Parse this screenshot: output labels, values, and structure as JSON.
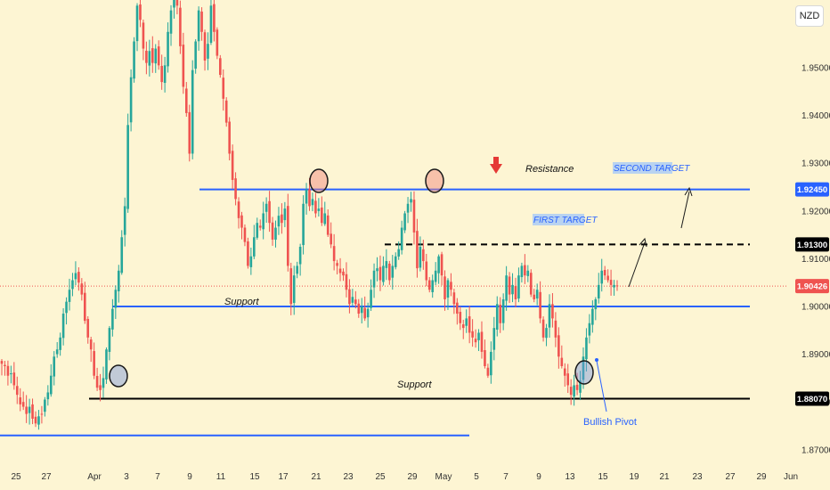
{
  "currency_badge": "NZD",
  "colors": {
    "background": "#fdf5d3",
    "bull": "#26a69a",
    "bear": "#ef5350",
    "resistance_line": "#2962ff",
    "support_black": "#000000",
    "current_price": "#ef5350"
  },
  "chart_data": {
    "type": "candlestick",
    "title": "",
    "instrument_currency": "NZD",
    "x_tick_labels": [
      "25",
      "27",
      "Apr",
      "3",
      "7",
      "9",
      "11",
      "15",
      "17",
      "21",
      "23",
      "25",
      "29",
      "May",
      "5",
      "7",
      "9",
      "13",
      "15",
      "19",
      "21",
      "23",
      "27",
      "29",
      "Jun"
    ],
    "ylim": [
      1.865,
      1.965
    ],
    "y_ticks": [
      1.87,
      1.88,
      1.89,
      1.9,
      1.91,
      1.92,
      1.93,
      1.94,
      1.95
    ],
    "y_tick_labels": [
      "1.87000",
      "1.88000",
      "1.89000",
      "1.90000",
      "1.91000",
      "1.92000",
      "1.93000",
      "1.94000",
      "1.95000"
    ],
    "price_tags": [
      {
        "label": "1.92450",
        "value": 1.9245,
        "bg": "#2962ff",
        "fg": "#ffffff"
      },
      {
        "label": "1.91300",
        "value": 1.913,
        "bg": "#000000",
        "fg": "#ffffff"
      },
      {
        "label": "1.90426",
        "value": 1.90426,
        "bg": "#ef5350",
        "fg": "#ffffff"
      },
      {
        "label": "1.88070",
        "value": 1.8807,
        "bg": "#000000",
        "fg": "#ffffff"
      }
    ],
    "current_price": 1.90426,
    "grid": false,
    "levels": [
      {
        "name": "resistance",
        "value": 1.9245,
        "color": "#2962ff",
        "style": "solid"
      },
      {
        "name": "first-target",
        "value": 1.913,
        "color": "#000000",
        "style": "dashed"
      },
      {
        "name": "upper-support",
        "value": 1.9,
        "color": "#2962ff",
        "style": "solid"
      },
      {
        "name": "lower-support",
        "value": 1.8807,
        "color": "#000000",
        "style": "solid"
      },
      {
        "name": "march-low-line",
        "value": 1.873,
        "color": "#2962ff",
        "style": "solid"
      }
    ],
    "annotations": {
      "resistance": "Resistance",
      "second_target": "SECOND TARGET",
      "first_target": "FIRST TARGET",
      "upper_support": "Support",
      "lower_support": "Support",
      "bullish_pivot": "Bullish Pivot"
    },
    "close_path": [
      1.888,
      1.8875,
      1.8855,
      1.886,
      1.8835,
      1.8815,
      1.8795,
      1.879,
      1.8775,
      1.879,
      1.8765,
      1.8755,
      1.877,
      1.8775,
      1.8805,
      1.882,
      1.8855,
      1.8895,
      1.891,
      1.8935,
      1.8985,
      1.901,
      1.9035,
      1.9055,
      1.907,
      1.905,
      1.9025,
      1.897,
      1.8935,
      1.891,
      1.8855,
      1.883,
      1.8825,
      1.885,
      1.891,
      1.8955,
      1.8995,
      1.9035,
      1.9075,
      1.9145,
      1.921,
      1.938,
      1.948,
      1.9555,
      1.963,
      1.96,
      1.954,
      1.951,
      1.9535,
      1.951,
      1.954,
      1.9505,
      1.947,
      1.9505,
      1.9575,
      1.962,
      1.9645,
      1.963,
      1.9545,
      1.946,
      1.9405,
      1.932,
      1.9495,
      1.9555,
      1.962,
      1.9575,
      1.9515,
      1.955,
      1.963,
      1.9575,
      1.9525,
      1.9485,
      1.9435,
      1.9385,
      1.932,
      1.9265,
      1.9225,
      1.9185,
      1.9165,
      1.9135,
      1.9085,
      1.9105,
      1.9145,
      1.9175,
      1.9165,
      1.9195,
      1.9215,
      1.9175,
      1.914,
      1.9165,
      1.919,
      1.9175,
      1.9205,
      1.9085,
      1.9005,
      1.9065,
      1.9085,
      1.9125,
      1.9215,
      1.9245,
      1.921,
      1.9225,
      1.9195,
      1.9205,
      1.9175,
      1.9195,
      1.915,
      1.913,
      1.9095,
      1.9085,
      1.907,
      1.9065,
      1.9035,
      1.9005,
      1.902,
      1.9005,
      1.8985,
      1.9,
      1.8975,
      1.8995,
      1.9035,
      1.9075,
      1.908,
      1.9055,
      1.9085,
      1.9095,
      1.9055,
      1.9085,
      1.9105,
      1.912,
      1.9165,
      1.9195,
      1.9215,
      1.9225,
      1.9155,
      1.908,
      1.9125,
      1.9095,
      1.9055,
      1.9035,
      1.9055,
      1.9075,
      1.9105,
      1.9065,
      1.9015,
      1.9055,
      1.9035,
      1.9005,
      1.8985,
      1.8965,
      1.8955,
      1.8975,
      1.8945,
      1.8935,
      1.8925,
      1.8945,
      1.8905,
      1.8875,
      1.8855,
      1.8905,
      1.8955,
      1.9005,
      1.8965,
      1.9015,
      1.9065,
      1.9025,
      1.9045,
      1.9015,
      1.9065,
      1.9085,
      1.9065,
      1.9075,
      1.9025,
      1.9015,
      1.9035,
      1.8975,
      1.8935,
      1.8955,
      1.9005,
      1.8975,
      1.8935,
      1.8895,
      1.8875,
      1.8855,
      1.8835,
      1.8815,
      1.8835,
      1.8825,
      1.8845,
      1.8895,
      1.8935,
      1.8965,
      1.8995,
      1.9015,
      1.9045,
      1.9075,
      1.9065,
      1.9055,
      1.9045,
      1.9045,
      1.9043
    ]
  }
}
